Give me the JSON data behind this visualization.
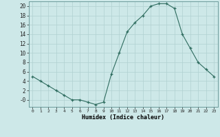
{
  "x": [
    0,
    1,
    2,
    3,
    4,
    5,
    6,
    7,
    8,
    9,
    10,
    11,
    12,
    13,
    14,
    15,
    16,
    17,
    18,
    19,
    20,
    21,
    22,
    23
  ],
  "y": [
    5,
    4,
    3,
    2,
    1,
    0,
    0,
    -0.5,
    -1,
    -0.5,
    5.5,
    10,
    14.5,
    16.5,
    18,
    20,
    20.5,
    20.5,
    19.5,
    14,
    11,
    8,
    6.5,
    5
  ],
  "line_color": "#2d6b5e",
  "marker_color": "#2d6b5e",
  "bg_color": "#cde8e8",
  "grid_color": "#b0d0d0",
  "xlabel": "Humidex (Indice chaleur)",
  "xlim": [
    -0.5,
    23.5
  ],
  "ylim": [
    -1.5,
    21
  ],
  "yticks": [
    0,
    2,
    4,
    6,
    8,
    10,
    12,
    14,
    16,
    18,
    20
  ],
  "ytick_labels": [
    "-0",
    "2",
    "4",
    "6",
    "8",
    "10",
    "12",
    "14",
    "16",
    "18",
    "20"
  ],
  "xticks": [
    0,
    1,
    2,
    3,
    4,
    5,
    6,
    7,
    8,
    9,
    10,
    11,
    12,
    13,
    14,
    15,
    16,
    17,
    18,
    19,
    20,
    21,
    22,
    23
  ],
  "xtick_labels": [
    "0",
    "1",
    "2",
    "3",
    "4",
    "5",
    "6",
    "7",
    "8",
    "9",
    "10",
    "11",
    "12",
    "13",
    "14",
    "15",
    "16",
    "17",
    "18",
    "19",
    "20",
    "21",
    "22",
    "23"
  ]
}
